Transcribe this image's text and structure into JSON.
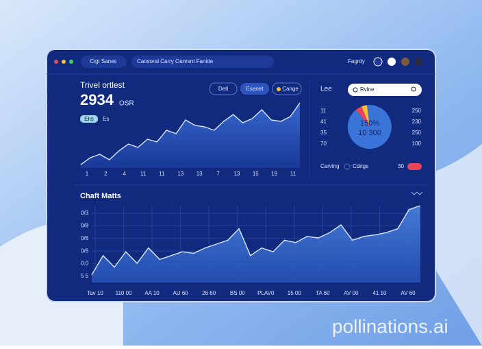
{
  "header": {
    "tab": "Cigt Sanes",
    "search": "Caosoral Carry Oanrsnt Fanide",
    "user": "Fagrdy"
  },
  "top_chart": {
    "title": "Trivel ortlest",
    "value": "2934",
    "unit": "OSR",
    "buttons": [
      "Deti",
      "Esanet",
      "Cange"
    ],
    "chips": [
      "Ehs",
      "Es"
    ],
    "x_labels": [
      "1",
      "2",
      "4",
      "11",
      "11",
      "13",
      "13",
      "7",
      "13",
      "15",
      "19",
      "11"
    ],
    "vlim": [
      0,
      100
    ],
    "color": "#2f62c9",
    "values": [
      5,
      15,
      20,
      12,
      25,
      35,
      30,
      42,
      38,
      55,
      50,
      70,
      62,
      60,
      55,
      68,
      78,
      66,
      72,
      85,
      70,
      68,
      75,
      95
    ]
  },
  "side_panel": {
    "title": "Lee",
    "search": "Rvlne",
    "left_numbers": [
      "11",
      "41",
      "35",
      "70"
    ],
    "right_numbers": [
      "250",
      "230",
      "250",
      "100"
    ],
    "center_top": "150%",
    "center_bottom": "10 300",
    "donut": {
      "values": [
        5,
        4,
        91
      ],
      "colors": [
        "#e8445a",
        "#f2c230",
        "#3b74d8"
      ]
    },
    "footer": [
      "Carvlng",
      "Cdrigs",
      "30"
    ]
  },
  "bottom_chart": {
    "title": "Chaft Matts",
    "y_labels": [
      "0/3",
      "0/8",
      "0/6",
      "0/6",
      "0.0",
      "5 5"
    ],
    "x_labels": [
      "Tav 10",
      "110 00",
      "AA 10",
      "AU 60",
      "26 60",
      "BS 00",
      "PLAV0",
      "15 00",
      "TA 60",
      "AV 00",
      "41 10",
      "AV 60"
    ],
    "vlim": [
      0,
      100
    ],
    "color": "#3d73d0",
    "values": [
      10,
      35,
      20,
      40,
      25,
      45,
      30,
      35,
      40,
      38,
      45,
      50,
      55,
      70,
      35,
      45,
      40,
      55,
      52,
      60,
      58,
      65,
      75,
      55,
      60,
      62,
      65,
      70,
      95,
      100
    ]
  },
  "watermark": "pollinations.ai"
}
